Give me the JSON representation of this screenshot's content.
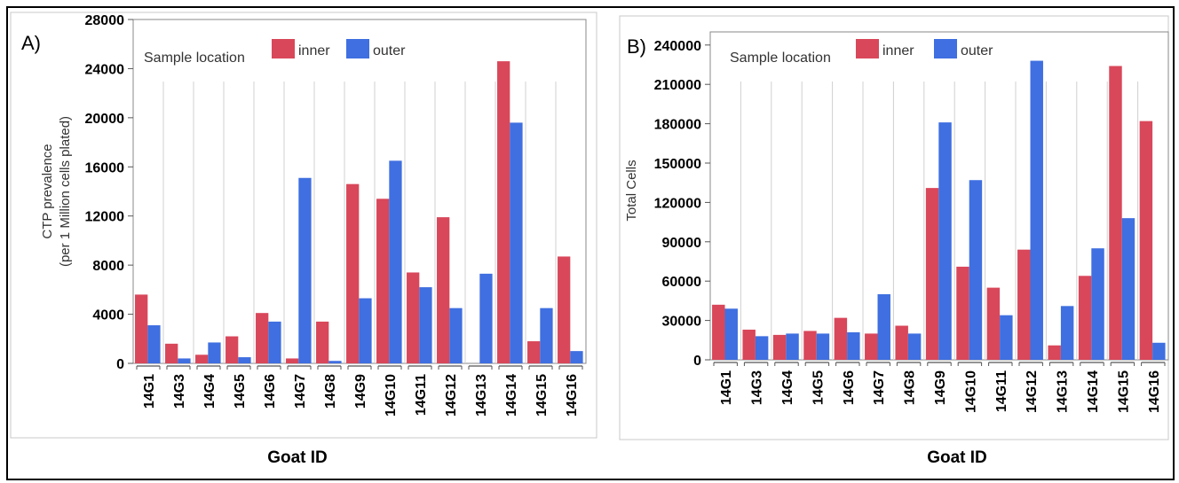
{
  "charts": [
    {
      "panel_label": "A)",
      "legend_title": "Sample location",
      "xlabel": "Goat ID",
      "ylabel_line1": "CTP prevalence",
      "ylabel_line2": "(per 1 Million cells plated)",
      "yticks": [
        "0",
        "4000",
        "8000",
        "12000",
        "16000",
        "20000",
        "24000",
        "28000"
      ]
    },
    {
      "panel_label": "B)",
      "legend_title": "Sample location",
      "xlabel": "Goat ID",
      "ylabel_line1": "Total Cells",
      "ylabel_line2": "",
      "yticks": [
        "0",
        "30000",
        "60000",
        "90000",
        "120000",
        "150000",
        "180000",
        "210000",
        "240000"
      ]
    }
  ],
  "chart_data": [
    {
      "type": "bar",
      "categories": [
        "14G1",
        "14G3",
        "14G4",
        "14G5",
        "14G6",
        "14G7",
        "14G8",
        "14G9",
        "14G10",
        "14G11",
        "14G12",
        "14G13",
        "14G14",
        "14G15",
        "14G16"
      ],
      "series": [
        {
          "name": "inner",
          "color": "#d9475a",
          "values": [
            5600,
            1600,
            700,
            2200,
            4100,
            400,
            3400,
            14600,
            13400,
            7400,
            11900,
            0,
            24600,
            1800,
            8700
          ]
        },
        {
          "name": "outer",
          "color": "#3f6fe0",
          "values": [
            3100,
            400,
            1700,
            500,
            3400,
            15100,
            200,
            5300,
            16500,
            6200,
            4500,
            7300,
            19600,
            4500,
            1000
          ]
        }
      ],
      "xlabel": "Goat ID",
      "ylabel": "CTP prevalence (per 1 Million cells plated)",
      "ylim": [
        0,
        28000
      ],
      "grid": "vertical",
      "legend_title": "Sample location",
      "legend_placement": "top-left"
    },
    {
      "type": "bar",
      "categories": [
        "14G1",
        "14G3",
        "14G4",
        "14G5",
        "14G6",
        "14G7",
        "14G8",
        "14G9",
        "14G10",
        "14G11",
        "14G12",
        "14G13",
        "14G14",
        "14G15",
        "14G16"
      ],
      "series": [
        {
          "name": "inner",
          "color": "#d9475a",
          "values": [
            42000,
            23000,
            19000,
            22000,
            32000,
            20000,
            26000,
            131000,
            71000,
            55000,
            84000,
            11000,
            64000,
            224000,
            182000
          ]
        },
        {
          "name": "outer",
          "color": "#3f6fe0",
          "values": [
            39000,
            18000,
            20000,
            20000,
            21000,
            50000,
            20000,
            181000,
            137000,
            34000,
            228000,
            41000,
            85000,
            108000,
            13000
          ]
        }
      ],
      "xlabel": "Goat ID",
      "ylabel": "Total Cells",
      "ylim": [
        0,
        250000
      ],
      "grid": "vertical",
      "legend_title": "Sample location",
      "legend_placement": "top-left"
    }
  ]
}
